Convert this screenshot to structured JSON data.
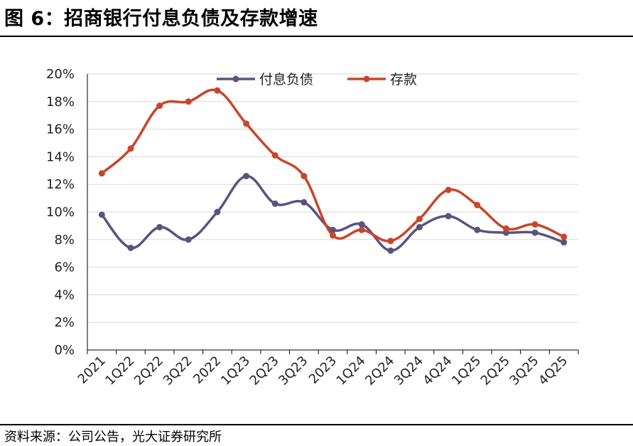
{
  "title": "图 6：招商银行付息负债及存款增速",
  "source": "资料来源：公司公告，光大证券研究所",
  "colors": {
    "liabilities": "#5b5280",
    "deposits": "#c9452a",
    "grid": "#d9d9d9",
    "axis": "#000000"
  },
  "chart_data": {
    "type": "line",
    "categories": [
      "2021",
      "1Q22",
      "2Q22",
      "3Q22",
      "2022",
      "1Q23",
      "2Q23",
      "3Q23",
      "2023",
      "1Q24",
      "2Q24",
      "3Q24",
      "4Q24",
      "1Q25",
      "2Q25",
      "3Q25",
      "4Q25"
    ],
    "series": [
      {
        "name": "付息负债",
        "values": [
          9.8,
          7.4,
          8.9,
          8.0,
          10.0,
          12.6,
          10.6,
          10.7,
          8.7,
          9.1,
          7.2,
          8.9,
          9.7,
          8.7,
          8.5,
          8.5,
          7.8
        ]
      },
      {
        "name": "存款",
        "values": [
          12.8,
          14.6,
          17.7,
          18.0,
          18.8,
          16.4,
          14.1,
          12.6,
          8.3,
          8.7,
          7.9,
          9.5,
          11.6,
          10.5,
          8.8,
          9.1,
          8.2
        ]
      }
    ],
    "y_ticks": [
      "0%",
      "2%",
      "4%",
      "6%",
      "8%",
      "10%",
      "12%",
      "14%",
      "16%",
      "18%",
      "20%"
    ],
    "ylim": [
      0,
      20
    ],
    "grid": true,
    "legend_position": "top"
  }
}
